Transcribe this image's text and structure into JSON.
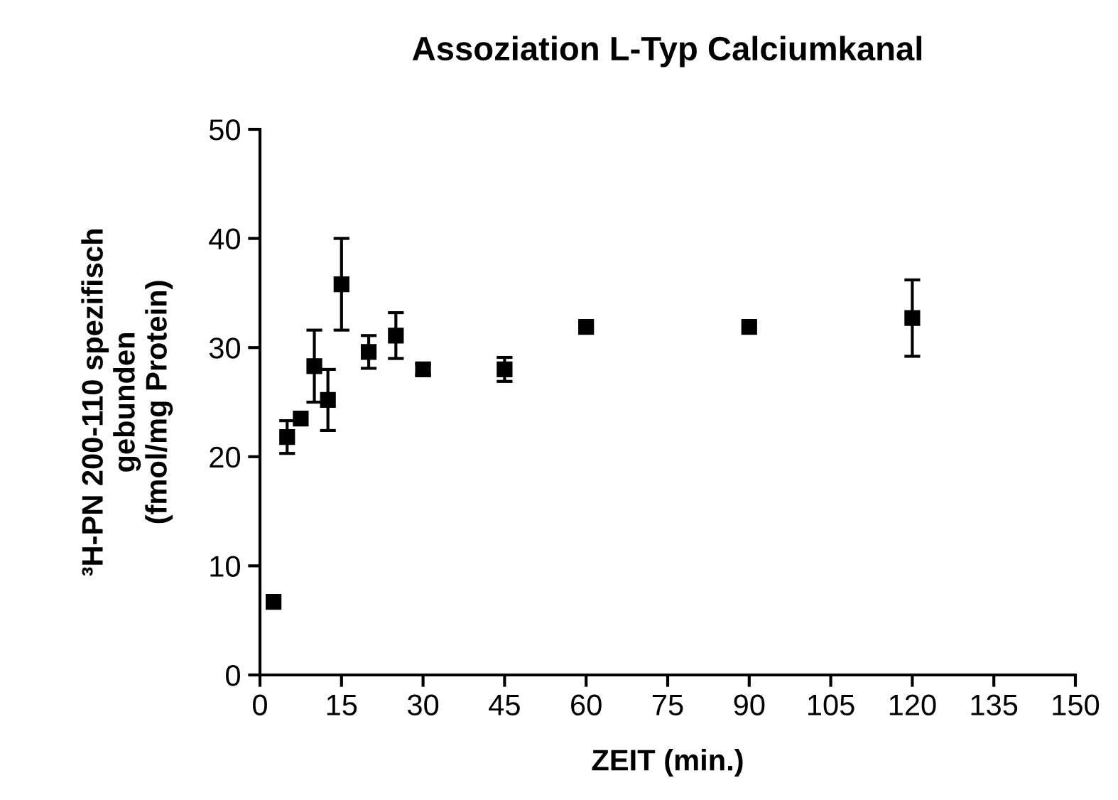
{
  "chart_data": {
    "type": "scatter",
    "title": "Assoziation L-Typ Calciumkanal",
    "xlabel": "ZEIT (min.)",
    "ylabel": "³H-PN 200-110 spezifisch\ngebunden\n(fmol/mg Protein)",
    "x": [
      2.5,
      5,
      7.5,
      10,
      12.5,
      15,
      20,
      25,
      30,
      45,
      60,
      90,
      120
    ],
    "values": [
      6.7,
      21.8,
      23.5,
      28.3,
      25.2,
      35.8,
      29.6,
      31.1,
      28.0,
      28.0,
      31.9,
      31.9,
      32.7
    ],
    "errors": [
      null,
      1.5,
      null,
      3.3,
      2.8,
      4.2,
      1.5,
      2.1,
      0.5,
      1.1,
      null,
      null,
      3.5
    ],
    "color": "#000000",
    "marker": "square",
    "xlim": [
      0,
      150
    ],
    "xticks": [
      0,
      15,
      30,
      45,
      60,
      75,
      90,
      105,
      120,
      135,
      150
    ],
    "ylim": [
      0,
      50
    ],
    "yticks": [
      0,
      10,
      20,
      30,
      40,
      50
    ],
    "grid": false,
    "legend": false
  }
}
